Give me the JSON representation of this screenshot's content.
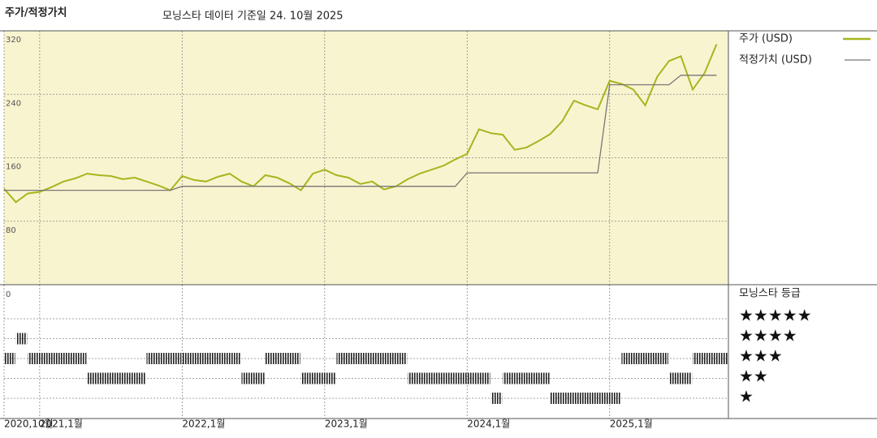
{
  "chart_data": [
    {
      "type": "line",
      "title": "주가/적정가치",
      "subtitle": "모닝스타 데이터 기준일 24. 10월 2025",
      "xlim": [
        "2020-10",
        "2025-11"
      ],
      "xticks": [
        {
          "value": "2020-10",
          "label": "2020,10월"
        },
        {
          "value": "2021-01",
          "label": "2021,1월"
        },
        {
          "value": "2022-01",
          "label": "2022,1월"
        },
        {
          "value": "2023-01",
          "label": "2023,1월"
        },
        {
          "value": "2024-01",
          "label": "2024,1월"
        },
        {
          "value": "2025-01",
          "label": "2025,1월"
        }
      ],
      "ylim": [
        0,
        320
      ],
      "yticks": [
        80,
        160,
        240,
        320
      ],
      "grid": true,
      "background": "#f8f4cf",
      "x": [
        "2020-10",
        "2020-11",
        "2020-12",
        "2021-01",
        "2021-02",
        "2021-03",
        "2021-04",
        "2021-05",
        "2021-06",
        "2021-07",
        "2021-08",
        "2021-09",
        "2021-10",
        "2021-11",
        "2021-12",
        "2022-01",
        "2022-02",
        "2022-03",
        "2022-04",
        "2022-05",
        "2022-06",
        "2022-07",
        "2022-08",
        "2022-09",
        "2022-10",
        "2022-11",
        "2022-12",
        "2023-01",
        "2023-02",
        "2023-03",
        "2023-04",
        "2023-05",
        "2023-06",
        "2023-07",
        "2023-08",
        "2023-09",
        "2023-10",
        "2023-11",
        "2023-12",
        "2024-01",
        "2024-02",
        "2024-03",
        "2024-04",
        "2024-05",
        "2024-06",
        "2024-07",
        "2024-08",
        "2024-09",
        "2024-10",
        "2024-11",
        "2024-12",
        "2025-01",
        "2025-02",
        "2025-03",
        "2025-04",
        "2025-05",
        "2025-06",
        "2025-07",
        "2025-08",
        "2025-09",
        "2025-10"
      ],
      "series": [
        {
          "name": "주가 (USD)",
          "color": "#a6b51e",
          "values": [
            121,
            104,
            115,
            117,
            123,
            130,
            134,
            140,
            138,
            137,
            133,
            135,
            130,
            125,
            119,
            137,
            132,
            130,
            136,
            140,
            130,
            124,
            138,
            135,
            128,
            119,
            140,
            145,
            138,
            135,
            127,
            130,
            120,
            124,
            133,
            140,
            145,
            150,
            158,
            165,
            196,
            191,
            189,
            170,
            173,
            181,
            190,
            206,
            232,
            226,
            221,
            257,
            253,
            246,
            226,
            262,
            282,
            288,
            246,
            267,
            303
          ]
        },
        {
          "name": "적정가치 (USD)",
          "color": "#777777",
          "values": [
            119,
            119,
            119,
            119,
            119,
            119,
            119,
            119,
            119,
            119,
            119,
            119,
            119,
            119,
            119,
            124,
            124,
            124,
            124,
            124,
            124,
            124,
            124,
            124,
            124,
            124,
            124,
            124,
            124,
            124,
            124,
            124,
            124,
            124,
            124,
            124,
            124,
            124,
            124,
            141,
            141,
            141,
            141,
            141,
            141,
            141,
            141,
            141,
            141,
            141,
            141,
            252,
            252,
            252,
            252,
            252,
            252,
            264,
            264,
            264,
            264
          ]
        }
      ]
    },
    {
      "type": "rating",
      "title": "모닝스타 등급",
      "top_label": "0",
      "color": "#222222",
      "yticks": [
        {
          "value": 5,
          "label": "★★★★★"
        },
        {
          "value": 4,
          "label": "★★★★"
        },
        {
          "value": 3,
          "label": "★★★"
        },
        {
          "value": 2,
          "label": "★★"
        },
        {
          "value": 1,
          "label": "★"
        }
      ],
      "x": [
        "2020-10",
        "2020-11",
        "2020-12",
        "2021-05",
        "2021-10",
        "2022-01",
        "2022-06",
        "2022-08",
        "2022-11",
        "2023-02",
        "2023-08",
        "2024-03",
        "2024-04",
        "2024-08",
        "2025-02",
        "2025-06",
        "2025-08"
      ],
      "x_end": [
        "2020-11",
        "2020-12",
        "2021-05",
        "2021-10",
        "2022-01",
        "2022-06",
        "2022-08",
        "2022-11",
        "2023-02",
        "2023-08",
        "2024-03",
        "2024-04",
        "2024-08",
        "2025-02",
        "2025-06",
        "2025-08",
        "2025-11"
      ],
      "values": [
        3,
        4,
        3,
        2,
        3,
        3,
        2,
        3,
        2,
        3,
        2,
        1,
        2,
        1,
        3,
        2,
        3
      ]
    }
  ]
}
